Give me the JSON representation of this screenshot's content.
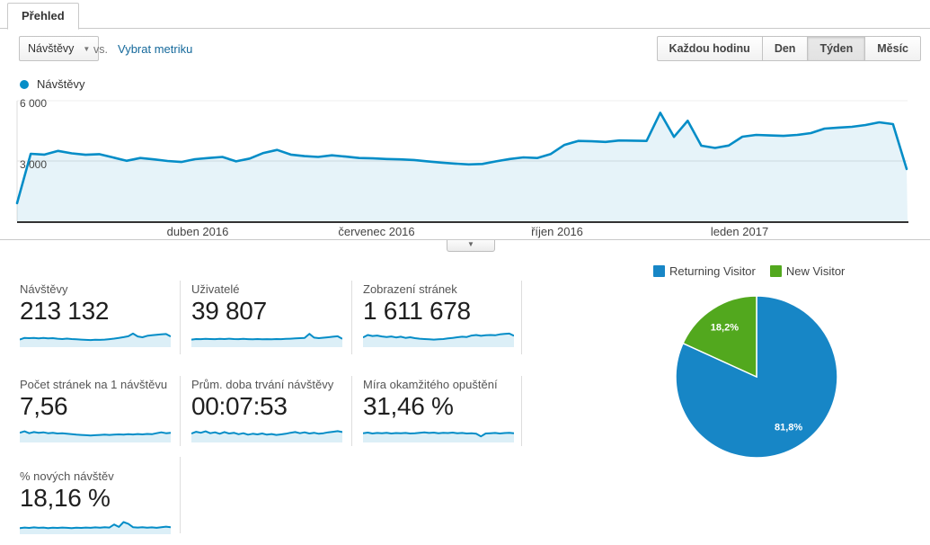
{
  "tab": {
    "label": "Přehled"
  },
  "controls": {
    "metric_selector_value": "Návštěvy",
    "vs_label": "vs.",
    "select_metric_link": "Vybrat metriku",
    "granularity_buttons": [
      {
        "label": "Každou hodinu",
        "selected": false
      },
      {
        "label": "Den",
        "selected": false
      },
      {
        "label": "Týden",
        "selected": true
      },
      {
        "label": "Měsíc",
        "selected": false
      }
    ]
  },
  "icons": {
    "dropdown_caret": "▼",
    "collapse_arrow": "▼",
    "legend_dot": "●"
  },
  "colors": {
    "line_blue": "#058dc7",
    "area_fill": "rgba(5,141,199,0.10)",
    "spark_fill": "rgba(5,141,199,0.14)",
    "pie_blue": "#1786c6",
    "pie_green": "#52a81e",
    "link_blue": "#15699b"
  },
  "timeline_legend": {
    "label": "Návštěvy"
  },
  "chart_data": [
    {
      "type": "area",
      "name": "Návštěvy",
      "granularity": "Týden",
      "y_tick_labels": [
        "6 000",
        "3 000"
      ],
      "ylim": [
        0,
        6000
      ],
      "x_labels": [
        "duben 2016",
        "červenec 2016",
        "říjen 2016",
        "leden 2017"
      ],
      "values": [
        900,
        3360,
        3320,
        3500,
        3380,
        3310,
        3340,
        3180,
        3010,
        3150,
        3080,
        3000,
        2950,
        3090,
        3150,
        3200,
        2980,
        3120,
        3400,
        3550,
        3320,
        3240,
        3200,
        3280,
        3220,
        3150,
        3130,
        3100,
        3080,
        3050,
        2980,
        2920,
        2870,
        2830,
        2850,
        2980,
        3100,
        3180,
        3150,
        3350,
        3800,
        4000,
        3980,
        3950,
        4020,
        4010,
        4000,
        5400,
        4200,
        5000,
        3760,
        3650,
        3770,
        4210,
        4300,
        4270,
        4250,
        4300,
        4390,
        4610,
        4660,
        4700,
        4790,
        4925,
        4835,
        2600
      ]
    },
    {
      "type": "pie",
      "series": [
        {
          "name": "Returning Visitor",
          "value_pct": 81.8,
          "label": "81,8%",
          "color": "#1786c6"
        },
        {
          "name": "New Visitor",
          "value_pct": 18.2,
          "label": "18,2%",
          "color": "#52a81e"
        }
      ]
    }
  ],
  "cards": [
    {
      "label": "Návštěvy",
      "value": "213 132",
      "spark": [
        0.4,
        0.52,
        0.5,
        0.52,
        0.49,
        0.51,
        0.48,
        0.5,
        0.46,
        0.44,
        0.47,
        0.44,
        0.42,
        0.4,
        0.38,
        0.37,
        0.39,
        0.38,
        0.4,
        0.43,
        0.47,
        0.52,
        0.57,
        0.63,
        0.82,
        0.62,
        0.56,
        0.66,
        0.7,
        0.74,
        0.77,
        0.79,
        0.62
      ]
    },
    {
      "label": "Uživatelé",
      "value": "39 807",
      "spark": [
        0.4,
        0.44,
        0.43,
        0.45,
        0.44,
        0.43,
        0.45,
        0.44,
        0.46,
        0.44,
        0.43,
        0.45,
        0.43,
        0.42,
        0.44,
        0.42,
        0.43,
        0.42,
        0.44,
        0.43,
        0.45,
        0.46,
        0.48,
        0.5,
        0.52,
        0.8,
        0.54,
        0.5,
        0.53,
        0.56,
        0.6,
        0.63,
        0.45
      ]
    },
    {
      "label": "Zobrazení stránek",
      "value": "1 611 678",
      "spark": [
        0.55,
        0.72,
        0.65,
        0.68,
        0.62,
        0.58,
        0.62,
        0.55,
        0.6,
        0.52,
        0.56,
        0.5,
        0.46,
        0.44,
        0.42,
        0.4,
        0.42,
        0.44,
        0.48,
        0.52,
        0.56,
        0.6,
        0.58,
        0.68,
        0.72,
        0.66,
        0.7,
        0.72,
        0.7,
        0.76,
        0.8,
        0.82,
        0.66
      ]
    },
    {
      "label": "Počet stránek na 1 návštěvu",
      "value": "7,56",
      "spark": [
        0.55,
        0.65,
        0.52,
        0.6,
        0.55,
        0.58,
        0.52,
        0.55,
        0.5,
        0.52,
        0.48,
        0.45,
        0.42,
        0.4,
        0.38,
        0.36,
        0.38,
        0.4,
        0.42,
        0.4,
        0.42,
        0.44,
        0.42,
        0.45,
        0.43,
        0.46,
        0.44,
        0.47,
        0.45,
        0.52,
        0.58,
        0.52,
        0.55
      ]
    },
    {
      "label": "Prům. doba trvání návštěvy",
      "value": "00:07:53",
      "spark": [
        0.5,
        0.62,
        0.55,
        0.65,
        0.52,
        0.58,
        0.48,
        0.6,
        0.5,
        0.55,
        0.45,
        0.52,
        0.42,
        0.48,
        0.44,
        0.5,
        0.42,
        0.46,
        0.4,
        0.44,
        0.48,
        0.55,
        0.6,
        0.52,
        0.58,
        0.5,
        0.55,
        0.48,
        0.52,
        0.58,
        0.62,
        0.66,
        0.6
      ]
    },
    {
      "label": "Míra okamžitého opuštění",
      "value": "31,46 %",
      "spark": [
        0.52,
        0.56,
        0.5,
        0.54,
        0.52,
        0.55,
        0.5,
        0.53,
        0.51,
        0.54,
        0.5,
        0.52,
        0.55,
        0.58,
        0.54,
        0.56,
        0.52,
        0.55,
        0.53,
        0.56,
        0.52,
        0.54,
        0.5,
        0.52,
        0.48,
        0.3,
        0.5,
        0.52,
        0.54,
        0.5,
        0.53,
        0.55,
        0.52
      ]
    },
    {
      "label": "% nových návštěv",
      "value": "18,16 %",
      "spark": [
        0.3,
        0.34,
        0.31,
        0.35,
        0.32,
        0.34,
        0.3,
        0.33,
        0.31,
        0.34,
        0.32,
        0.3,
        0.33,
        0.31,
        0.34,
        0.32,
        0.35,
        0.33,
        0.36,
        0.34,
        0.55,
        0.38,
        0.72,
        0.6,
        0.36,
        0.34,
        0.36,
        0.33,
        0.35,
        0.32,
        0.36,
        0.4,
        0.36
      ]
    }
  ]
}
